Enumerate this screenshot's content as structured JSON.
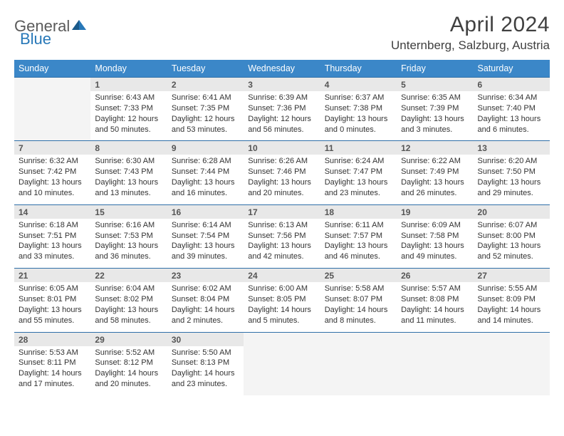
{
  "logo": {
    "general": "General",
    "blue": "Blue"
  },
  "title": "April 2024",
  "location": "Unternberg, Salzburg, Austria",
  "colors": {
    "header_bg": "#3b87c8",
    "header_text": "#ffffff",
    "daynum_bg": "#e8e8e8",
    "row_border": "#2f6fa8",
    "empty_bg": "#f4f4f4",
    "body_text": "#333333",
    "logo_gray": "#5a5a5a",
    "logo_blue": "#2878b8"
  },
  "day_headers": [
    "Sunday",
    "Monday",
    "Tuesday",
    "Wednesday",
    "Thursday",
    "Friday",
    "Saturday"
  ],
  "weeks": [
    {
      "days": [
        null,
        {
          "num": "1",
          "sunrise": "Sunrise: 6:43 AM",
          "sunset": "Sunset: 7:33 PM",
          "daylight": "Daylight: 12 hours and 50 minutes."
        },
        {
          "num": "2",
          "sunrise": "Sunrise: 6:41 AM",
          "sunset": "Sunset: 7:35 PM",
          "daylight": "Daylight: 12 hours and 53 minutes."
        },
        {
          "num": "3",
          "sunrise": "Sunrise: 6:39 AM",
          "sunset": "Sunset: 7:36 PM",
          "daylight": "Daylight: 12 hours and 56 minutes."
        },
        {
          "num": "4",
          "sunrise": "Sunrise: 6:37 AM",
          "sunset": "Sunset: 7:38 PM",
          "daylight": "Daylight: 13 hours and 0 minutes."
        },
        {
          "num": "5",
          "sunrise": "Sunrise: 6:35 AM",
          "sunset": "Sunset: 7:39 PM",
          "daylight": "Daylight: 13 hours and 3 minutes."
        },
        {
          "num": "6",
          "sunrise": "Sunrise: 6:34 AM",
          "sunset": "Sunset: 7:40 PM",
          "daylight": "Daylight: 13 hours and 6 minutes."
        }
      ]
    },
    {
      "days": [
        {
          "num": "7",
          "sunrise": "Sunrise: 6:32 AM",
          "sunset": "Sunset: 7:42 PM",
          "daylight": "Daylight: 13 hours and 10 minutes."
        },
        {
          "num": "8",
          "sunrise": "Sunrise: 6:30 AM",
          "sunset": "Sunset: 7:43 PM",
          "daylight": "Daylight: 13 hours and 13 minutes."
        },
        {
          "num": "9",
          "sunrise": "Sunrise: 6:28 AM",
          "sunset": "Sunset: 7:44 PM",
          "daylight": "Daylight: 13 hours and 16 minutes."
        },
        {
          "num": "10",
          "sunrise": "Sunrise: 6:26 AM",
          "sunset": "Sunset: 7:46 PM",
          "daylight": "Daylight: 13 hours and 20 minutes."
        },
        {
          "num": "11",
          "sunrise": "Sunrise: 6:24 AM",
          "sunset": "Sunset: 7:47 PM",
          "daylight": "Daylight: 13 hours and 23 minutes."
        },
        {
          "num": "12",
          "sunrise": "Sunrise: 6:22 AM",
          "sunset": "Sunset: 7:49 PM",
          "daylight": "Daylight: 13 hours and 26 minutes."
        },
        {
          "num": "13",
          "sunrise": "Sunrise: 6:20 AM",
          "sunset": "Sunset: 7:50 PM",
          "daylight": "Daylight: 13 hours and 29 minutes."
        }
      ]
    },
    {
      "days": [
        {
          "num": "14",
          "sunrise": "Sunrise: 6:18 AM",
          "sunset": "Sunset: 7:51 PM",
          "daylight": "Daylight: 13 hours and 33 minutes."
        },
        {
          "num": "15",
          "sunrise": "Sunrise: 6:16 AM",
          "sunset": "Sunset: 7:53 PM",
          "daylight": "Daylight: 13 hours and 36 minutes."
        },
        {
          "num": "16",
          "sunrise": "Sunrise: 6:14 AM",
          "sunset": "Sunset: 7:54 PM",
          "daylight": "Daylight: 13 hours and 39 minutes."
        },
        {
          "num": "17",
          "sunrise": "Sunrise: 6:13 AM",
          "sunset": "Sunset: 7:56 PM",
          "daylight": "Daylight: 13 hours and 42 minutes."
        },
        {
          "num": "18",
          "sunrise": "Sunrise: 6:11 AM",
          "sunset": "Sunset: 7:57 PM",
          "daylight": "Daylight: 13 hours and 46 minutes."
        },
        {
          "num": "19",
          "sunrise": "Sunrise: 6:09 AM",
          "sunset": "Sunset: 7:58 PM",
          "daylight": "Daylight: 13 hours and 49 minutes."
        },
        {
          "num": "20",
          "sunrise": "Sunrise: 6:07 AM",
          "sunset": "Sunset: 8:00 PM",
          "daylight": "Daylight: 13 hours and 52 minutes."
        }
      ]
    },
    {
      "days": [
        {
          "num": "21",
          "sunrise": "Sunrise: 6:05 AM",
          "sunset": "Sunset: 8:01 PM",
          "daylight": "Daylight: 13 hours and 55 minutes."
        },
        {
          "num": "22",
          "sunrise": "Sunrise: 6:04 AM",
          "sunset": "Sunset: 8:02 PM",
          "daylight": "Daylight: 13 hours and 58 minutes."
        },
        {
          "num": "23",
          "sunrise": "Sunrise: 6:02 AM",
          "sunset": "Sunset: 8:04 PM",
          "daylight": "Daylight: 14 hours and 2 minutes."
        },
        {
          "num": "24",
          "sunrise": "Sunrise: 6:00 AM",
          "sunset": "Sunset: 8:05 PM",
          "daylight": "Daylight: 14 hours and 5 minutes."
        },
        {
          "num": "25",
          "sunrise": "Sunrise: 5:58 AM",
          "sunset": "Sunset: 8:07 PM",
          "daylight": "Daylight: 14 hours and 8 minutes."
        },
        {
          "num": "26",
          "sunrise": "Sunrise: 5:57 AM",
          "sunset": "Sunset: 8:08 PM",
          "daylight": "Daylight: 14 hours and 11 minutes."
        },
        {
          "num": "27",
          "sunrise": "Sunrise: 5:55 AM",
          "sunset": "Sunset: 8:09 PM",
          "daylight": "Daylight: 14 hours and 14 minutes."
        }
      ]
    },
    {
      "days": [
        {
          "num": "28",
          "sunrise": "Sunrise: 5:53 AM",
          "sunset": "Sunset: 8:11 PM",
          "daylight": "Daylight: 14 hours and 17 minutes."
        },
        {
          "num": "29",
          "sunrise": "Sunrise: 5:52 AM",
          "sunset": "Sunset: 8:12 PM",
          "daylight": "Daylight: 14 hours and 20 minutes."
        },
        {
          "num": "30",
          "sunrise": "Sunrise: 5:50 AM",
          "sunset": "Sunset: 8:13 PM",
          "daylight": "Daylight: 14 hours and 23 minutes."
        },
        null,
        null,
        null,
        null
      ]
    }
  ]
}
